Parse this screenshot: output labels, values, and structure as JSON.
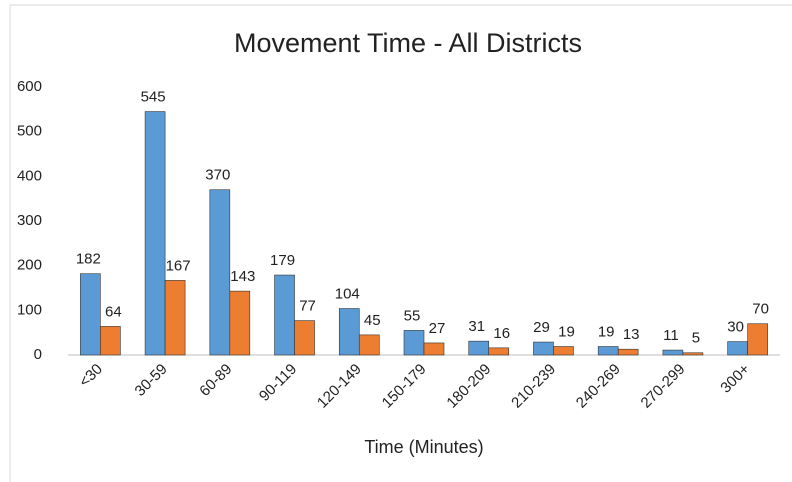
{
  "chart_data": {
    "type": "bar",
    "title": "Movement  Time - All Districts",
    "xlabel": "Time (Minutes)",
    "categories": [
      "<30",
      "30-59",
      "60-89",
      "90-119",
      "120-149",
      "150-179",
      "180-209",
      "210-239",
      "240-269",
      "270-299",
      "300+"
    ],
    "series": [
      {
        "color": "#5b9bd5",
        "values": [
          182,
          545,
          370,
          179,
          104,
          55,
          31,
          29,
          19,
          11,
          30
        ]
      },
      {
        "color": "#ed7d31",
        "values": [
          64,
          167,
          143,
          77,
          45,
          27,
          16,
          19,
          13,
          5,
          70
        ]
      }
    ],
    "ylim": [
      0,
      600
    ],
    "yticks": [
      0,
      100,
      200,
      300,
      400,
      500,
      600
    ],
    "grid": false
  }
}
